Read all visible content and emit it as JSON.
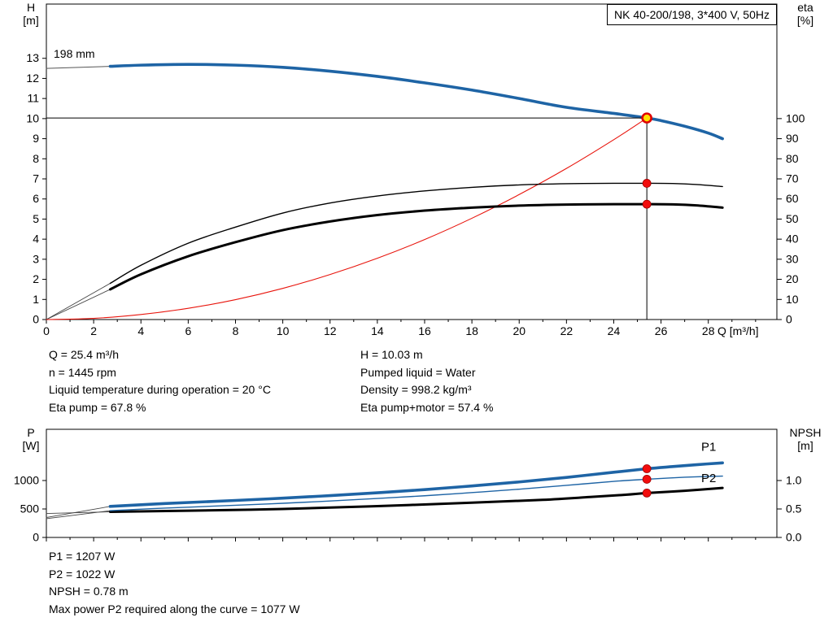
{
  "title_box": "NK 40-200/198, 3*400 V, 50Hz",
  "colors": {
    "curve_blue": "#1e64a5",
    "curve_red": "#e8140c",
    "curve_black": "#000000",
    "duty_fill": "#ffdf00",
    "duty_ring": "#e00000",
    "dot_red": "#f20d0d"
  },
  "chart_data": [
    {
      "name": "qh-chart",
      "type": "line",
      "annotation": "198 mm",
      "x_axis": {
        "label": "Q [m³/h]",
        "min": 0,
        "max": 30.9,
        "minor_step": 1,
        "major_ticks": [
          [
            0,
            "0"
          ],
          [
            2,
            "2"
          ],
          [
            4,
            "4"
          ],
          [
            6,
            "6"
          ],
          [
            8,
            "8"
          ],
          [
            10,
            "10"
          ],
          [
            12,
            "12"
          ],
          [
            14,
            "14"
          ],
          [
            16,
            "16"
          ],
          [
            18,
            "18"
          ],
          [
            20,
            "20"
          ],
          [
            22,
            "22"
          ],
          [
            24,
            "24"
          ],
          [
            26,
            "26"
          ],
          [
            28,
            "28"
          ]
        ]
      },
      "y_left": {
        "title_lines": [
          "H",
          "[m]"
        ],
        "min": 0,
        "max": 15.7,
        "ticks": [
          [
            0,
            "0"
          ],
          [
            1,
            "1"
          ],
          [
            2,
            "2"
          ],
          [
            3,
            "3"
          ],
          [
            4,
            "4"
          ],
          [
            5,
            "5"
          ],
          [
            6,
            "6"
          ],
          [
            7,
            "7"
          ],
          [
            8,
            "8"
          ],
          [
            9,
            "9"
          ],
          [
            10,
            "10"
          ],
          [
            11,
            "11"
          ],
          [
            12,
            "12"
          ],
          [
            13,
            "13"
          ]
        ]
      },
      "y_right": {
        "title_lines": [
          "eta",
          "[%]"
        ],
        "min": 0,
        "max": 157,
        "ticks": [
          [
            0,
            "0"
          ],
          [
            10,
            "10"
          ],
          [
            20,
            "20"
          ],
          [
            30,
            "30"
          ],
          [
            40,
            "40"
          ],
          [
            50,
            "50"
          ],
          [
            60,
            "60"
          ],
          [
            70,
            "70"
          ],
          [
            80,
            "80"
          ],
          [
            90,
            "90"
          ],
          [
            100,
            "100"
          ]
        ]
      },
      "series": [
        {
          "name": "qh-curve-extension",
          "axis": "left",
          "color": "#555555",
          "width": 1,
          "points": [
            [
              0,
              12.5
            ],
            [
              2.7,
              12.6
            ]
          ]
        },
        {
          "name": "eta-pump-extension",
          "axis": "right",
          "color": "#444444",
          "width": 0.9,
          "points": [
            [
              0,
              0
            ],
            [
              2.7,
              18
            ]
          ]
        },
        {
          "name": "eta-pump-motor-extension",
          "axis": "right",
          "color": "#444444",
          "width": 0.9,
          "points": [
            [
              0,
              0
            ],
            [
              2.7,
              15
            ]
          ]
        },
        {
          "name": "system-curve",
          "axis": "left",
          "color": "#e8140c",
          "width": 1.1,
          "points": [
            [
              0,
              0
            ],
            [
              2,
              0.06
            ],
            [
              4,
              0.25
            ],
            [
              6,
              0.56
            ],
            [
              8,
              0.99
            ],
            [
              10,
              1.55
            ],
            [
              12,
              2.24
            ],
            [
              14,
              3.05
            ],
            [
              16,
              3.98
            ],
            [
              18,
              5.04
            ],
            [
              20,
              6.22
            ],
            [
              22,
              7.52
            ],
            [
              24,
              8.95
            ],
            [
              25.4,
              10.03
            ]
          ]
        },
        {
          "name": "eta-pump-curve",
          "axis": "right",
          "color": "#000000",
          "width": 1.4,
          "points": [
            [
              2.7,
              18
            ],
            [
              4,
              27
            ],
            [
              6,
              38
            ],
            [
              8,
              46
            ],
            [
              10,
              53
            ],
            [
              12,
              58
            ],
            [
              14,
              61.5
            ],
            [
              16,
              64
            ],
            [
              18,
              65.8
            ],
            [
              20,
              67
            ],
            [
              22,
              67.6
            ],
            [
              24,
              67.8
            ],
            [
              25.4,
              67.8
            ],
            [
              26.5,
              67.7
            ],
            [
              27.5,
              67.2
            ],
            [
              28.6,
              66.2
            ]
          ]
        },
        {
          "name": "eta-pump-motor-curve",
          "axis": "right",
          "color": "#000000",
          "width": 3,
          "points": [
            [
              2.7,
              15
            ],
            [
              4,
              22.5
            ],
            [
              6,
              31.5
            ],
            [
              8,
              38.5
            ],
            [
              10,
              44.5
            ],
            [
              12,
              48.8
            ],
            [
              14,
              52
            ],
            [
              16,
              54.2
            ],
            [
              18,
              55.7
            ],
            [
              20,
              56.7
            ],
            [
              22,
              57.2
            ],
            [
              24,
              57.4
            ],
            [
              25.4,
              57.4
            ],
            [
              26.5,
              57.3
            ],
            [
              27.5,
              56.8
            ],
            [
              28.6,
              55.7
            ]
          ]
        },
        {
          "name": "qh-curve",
          "axis": "left",
          "color": "#1e64a5",
          "width": 3.6,
          "points": [
            [
              2.7,
              12.6
            ],
            [
              4,
              12.66
            ],
            [
              6,
              12.7
            ],
            [
              8,
              12.66
            ],
            [
              10,
              12.55
            ],
            [
              12,
              12.36
            ],
            [
              14,
              12.1
            ],
            [
              16,
              11.78
            ],
            [
              18,
              11.42
            ],
            [
              20,
              11.0
            ],
            [
              22,
              10.56
            ],
            [
              24,
              10.26
            ],
            [
              25.4,
              10.03
            ],
            [
              26,
              9.9
            ],
            [
              27,
              9.62
            ],
            [
              28,
              9.28
            ],
            [
              28.6,
              9.0
            ]
          ]
        }
      ],
      "duty_lines": {
        "q": 25.4,
        "h": 10.03
      },
      "markers": [
        {
          "type": "duty",
          "axis": "left",
          "x": 25.4,
          "y": 10.03,
          "name": "duty-point-marker"
        },
        {
          "type": "dot",
          "axis": "right",
          "x": 25.4,
          "y": 67.8,
          "name": "eta-pump-duty-dot"
        },
        {
          "type": "dot",
          "axis": "right",
          "x": 25.4,
          "y": 57.4,
          "name": "eta-pump-motor-duty-dot"
        }
      ]
    },
    {
      "name": "power-npsh-chart",
      "type": "line",
      "x_axis": {
        "label": "",
        "min": 0,
        "max": 30.9,
        "minor_step": 1,
        "major_ticks": [
          [
            0,
            ""
          ],
          [
            2,
            ""
          ],
          [
            4,
            ""
          ],
          [
            6,
            ""
          ],
          [
            8,
            ""
          ],
          [
            10,
            ""
          ],
          [
            12,
            ""
          ],
          [
            14,
            ""
          ],
          [
            16,
            ""
          ],
          [
            18,
            ""
          ],
          [
            20,
            ""
          ],
          [
            22,
            ""
          ],
          [
            24,
            ""
          ],
          [
            26,
            ""
          ],
          [
            28,
            ""
          ]
        ]
      },
      "y_left": {
        "title_lines": [
          "P",
          "[W]"
        ],
        "min": 0,
        "max": 1900,
        "ticks": [
          [
            0,
            "0"
          ],
          [
            500,
            "500"
          ],
          [
            1000,
            "1000"
          ]
        ]
      },
      "y_right": {
        "title_lines": [
          "NPSH",
          "[m]"
        ],
        "min": 0,
        "max": 1.9,
        "ticks": [
          [
            0,
            "0.0"
          ],
          [
            0.5,
            "0.5"
          ],
          [
            1,
            "1.0"
          ]
        ]
      },
      "series": [
        {
          "name": "p1-extension",
          "axis": "left",
          "color": "#444444",
          "width": 0.9,
          "points": [
            [
              0,
              350
            ],
            [
              2.7,
              545
            ]
          ]
        },
        {
          "name": "p2-extension",
          "axis": "left",
          "color": "#444444",
          "width": 0.9,
          "points": [
            [
              0,
              330
            ],
            [
              2.7,
              470
            ]
          ]
        },
        {
          "name": "npsh-extension",
          "axis": "right",
          "color": "#444444",
          "width": 0.9,
          "points": [
            [
              0,
              0.42
            ],
            [
              2.7,
              0.45
            ]
          ]
        },
        {
          "name": "npsh-curve",
          "axis": "right",
          "color": "#000000",
          "width": 3,
          "points": [
            [
              2.7,
              0.45
            ],
            [
              6,
              0.47
            ],
            [
              10,
              0.5
            ],
            [
              14,
              0.55
            ],
            [
              18,
              0.61
            ],
            [
              21,
              0.66
            ],
            [
              23,
              0.71
            ],
            [
              24.5,
              0.75
            ],
            [
              25.4,
              0.78
            ],
            [
              27,
              0.82
            ],
            [
              28.6,
              0.87
            ]
          ]
        },
        {
          "name": "p2-curve",
          "axis": "left",
          "color": "#1e64a5",
          "width": 1.4,
          "label": "P2",
          "label_at": [
            27.7,
            975
          ],
          "points": [
            [
              2.7,
              470
            ],
            [
              5,
              515
            ],
            [
              8,
              565
            ],
            [
              10,
              600
            ],
            [
              12,
              640
            ],
            [
              14,
              685
            ],
            [
              16,
              732
            ],
            [
              18,
              788
            ],
            [
              20,
              848
            ],
            [
              22,
              915
            ],
            [
              24,
              985
            ],
            [
              25.4,
              1022
            ],
            [
              26.5,
              1048
            ],
            [
              27.5,
              1065
            ],
            [
              28.6,
              1077
            ]
          ]
        },
        {
          "name": "p1-curve",
          "axis": "left",
          "color": "#1e64a5",
          "width": 3.6,
          "label": "P1",
          "label_at": [
            27.7,
            1520
          ],
          "points": [
            [
              2.7,
              545
            ],
            [
              5,
              595
            ],
            [
              8,
              650
            ],
            [
              10,
              690
            ],
            [
              12,
              735
            ],
            [
              14,
              785
            ],
            [
              16,
              840
            ],
            [
              18,
              905
            ],
            [
              20,
              975
            ],
            [
              22,
              1055
            ],
            [
              24,
              1145
            ],
            [
              25.4,
              1207
            ],
            [
              26.5,
              1245
            ],
            [
              27.5,
              1278
            ],
            [
              28.6,
              1310
            ]
          ]
        }
      ],
      "markers": [
        {
          "type": "dot",
          "axis": "left",
          "x": 25.4,
          "y": 1207,
          "name": "p1-duty-dot"
        },
        {
          "type": "dot",
          "axis": "left",
          "x": 25.4,
          "y": 1022,
          "name": "p2-duty-dot"
        },
        {
          "type": "dot",
          "axis": "right",
          "x": 25.4,
          "y": 0.78,
          "name": "npsh-duty-dot"
        }
      ]
    }
  ],
  "info_top": {
    "left": [
      "Q = 25.4 m³/h",
      "n = 1445 rpm",
      "Liquid temperature during operation = 20 °C",
      "Eta pump = 67.8 %"
    ],
    "right": [
      "H = 10.03 m",
      "Pumped liquid = Water",
      "Density = 998.2 kg/m³",
      "Eta pump+motor = 57.4 %"
    ]
  },
  "info_bottom": [
    "P1 = 1207 W",
    "P2 = 1022 W",
    "NPSH = 0.78 m",
    "Max power P2 required along the curve = 1077 W"
  ]
}
